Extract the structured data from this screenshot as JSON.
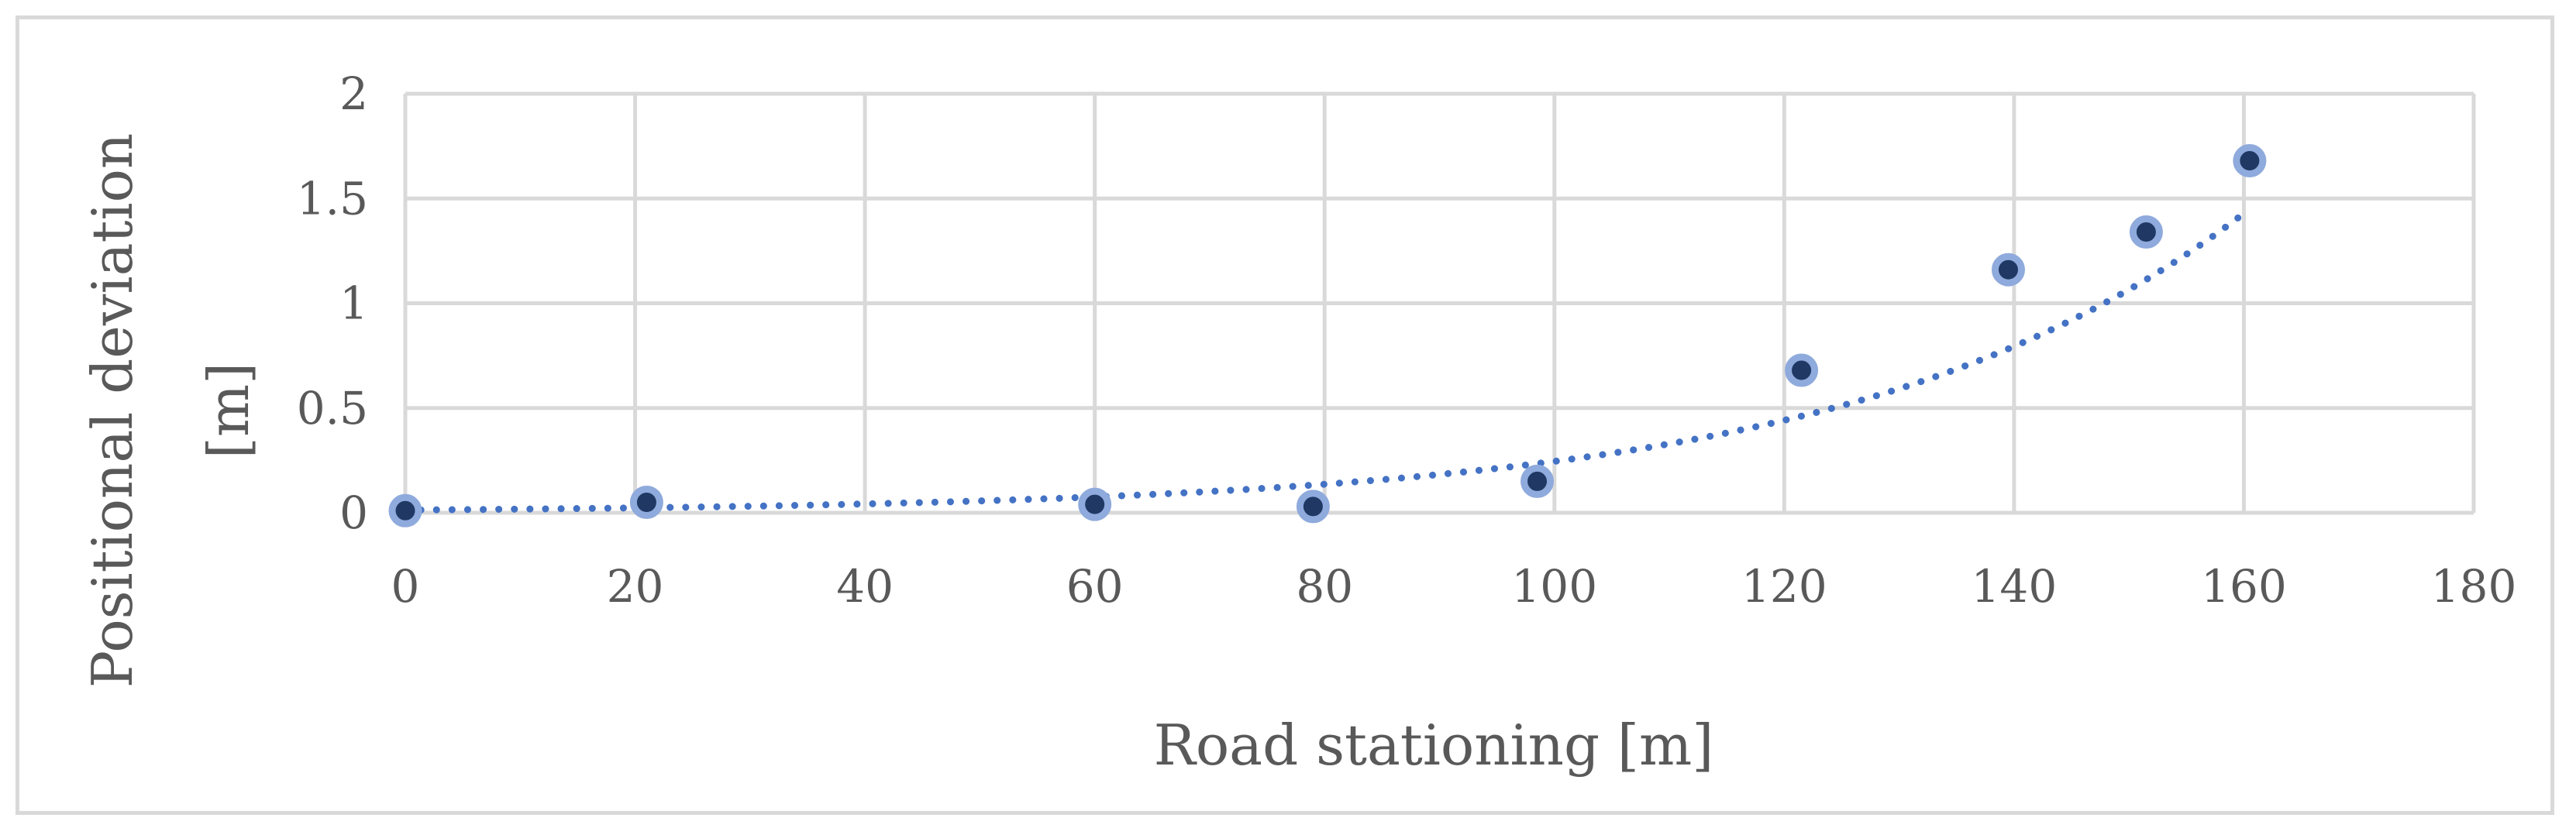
{
  "chart_data": {
    "type": "scatter",
    "xlabel": "Road stationing [m]",
    "ylabel_lines": [
      "Positional deviation",
      "[m]"
    ],
    "xlim": [
      0,
      180
    ],
    "ylim": [
      0,
      2
    ],
    "xticks": [
      0,
      20,
      40,
      60,
      80,
      100,
      120,
      140,
      160,
      180
    ],
    "yticks": [
      0,
      0.5,
      1,
      1.5,
      2
    ],
    "xtick_labels": [
      "0",
      "20",
      "40",
      "60",
      "80",
      "100",
      "120",
      "140",
      "160",
      "180"
    ],
    "ytick_labels": [
      "0",
      "0.5",
      "1",
      "1.5",
      "2"
    ],
    "grid": true,
    "points": [
      {
        "x": 0,
        "y": 0.01
      },
      {
        "x": 21,
        "y": 0.05
      },
      {
        "x": 60,
        "y": 0.04
      },
      {
        "x": 79,
        "y": 0.03
      },
      {
        "x": 98.5,
        "y": 0.15
      },
      {
        "x": 121.5,
        "y": 0.68
      },
      {
        "x": 139.5,
        "y": 1.16
      },
      {
        "x": 151.5,
        "y": 1.34
      },
      {
        "x": 160.5,
        "y": 1.68
      }
    ],
    "trendline": {
      "type": "exponential",
      "x_range": [
        0,
        160.5
      ],
      "y_start": 0.013,
      "y_end": 1.45
    },
    "colors": {
      "marker_fill": "#1f3864",
      "marker_edge": "#8faadc",
      "trendline": "#4472c4",
      "grid": "#d9d9d9",
      "text": "#595959"
    }
  }
}
